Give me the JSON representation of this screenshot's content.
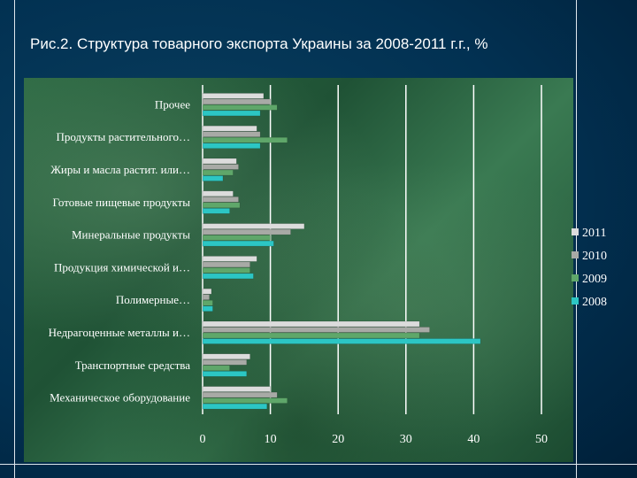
{
  "slide": {
    "title": "Рис.2. Структура товарного экспорта Украины за 2008-2011 г.г., %"
  },
  "colors": {
    "2011": "#dcdcdc",
    "2010": "#a8aaa6",
    "2009": "#5fa76a",
    "2008": "#2cc6c4"
  },
  "chart_data": {
    "type": "bar",
    "orientation": "horizontal",
    "title": "Рис.2. Структура товарного экспорта Украины за 2008-2011 г.г., %",
    "xlabel": "",
    "ylabel": "",
    "xlim": [
      0,
      50
    ],
    "xticks": [
      0,
      10,
      20,
      30,
      40,
      50
    ],
    "grid": "vertical",
    "legend_position": "right",
    "categories": [
      "Прочее",
      "Продукты растительного…",
      "Жиры и масла растит. или…",
      "Готовые пищевые продукты",
      "Минеральные продукты",
      "Продукция химической и…",
      "Полимерные…",
      "Недрагоценные металлы и…",
      "Транспортные средства",
      "Механическое оборудование"
    ],
    "series": [
      {
        "name": "2011",
        "values": [
          9,
          8,
          5,
          4.5,
          15,
          8,
          1.3,
          32,
          7,
          10
        ]
      },
      {
        "name": "2010",
        "values": [
          10,
          8.5,
          5.3,
          5.3,
          13,
          7,
          1,
          33.5,
          6.5,
          11
        ]
      },
      {
        "name": "2009",
        "values": [
          11,
          12.5,
          4.5,
          5.5,
          10,
          7,
          1.5,
          32,
          4,
          12.5
        ]
      },
      {
        "name": "2008",
        "values": [
          8.5,
          8.5,
          3,
          4,
          10.5,
          7.5,
          1.5,
          41,
          6.5,
          9.5
        ]
      }
    ]
  }
}
